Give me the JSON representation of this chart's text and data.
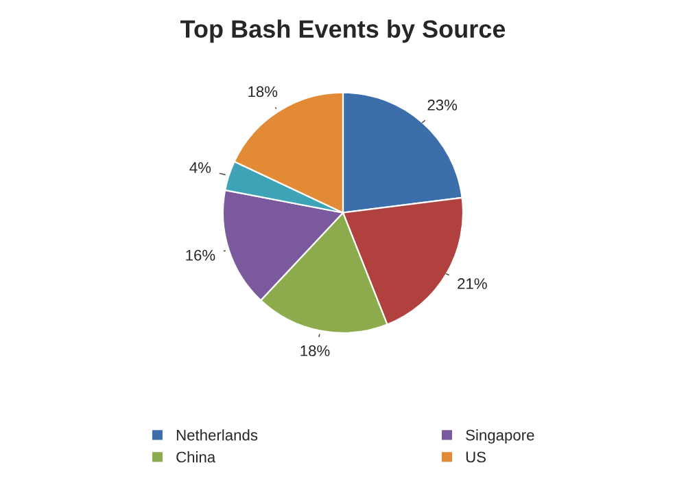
{
  "chart_data": {
    "type": "pie",
    "title": "Top Bash Events by Source",
    "categories": [
      "Netherlands",
      null,
      "China",
      "Singapore",
      null,
      "US"
    ],
    "values": [
      23,
      21,
      18,
      16,
      4,
      18
    ],
    "value_labels": [
      "23%",
      "21%",
      "18%",
      "16%",
      "4%",
      "18%"
    ],
    "colors": [
      "#3c6eac",
      "#b0413e",
      "#8cab4c",
      "#7a5a9c",
      "#3fa3b8",
      "#e28a36"
    ],
    "legend": "bottom"
  }
}
